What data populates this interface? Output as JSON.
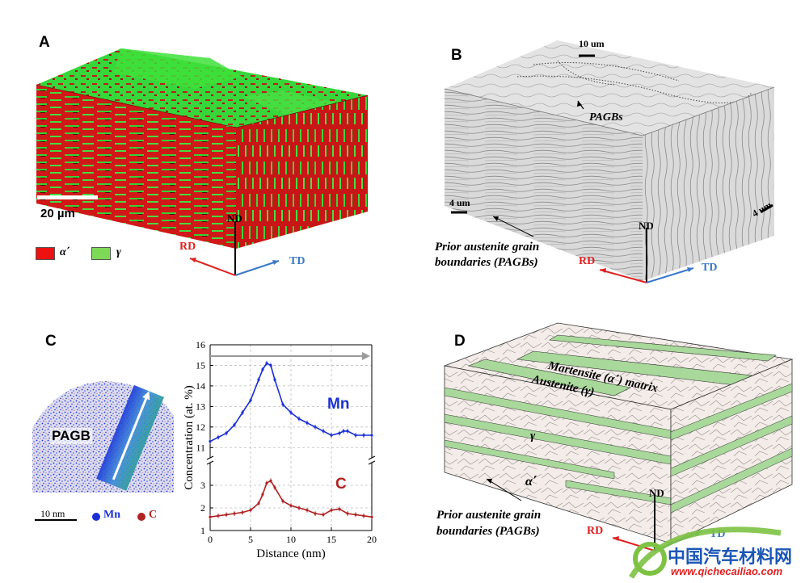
{
  "panels": {
    "a": {
      "letter": "A",
      "scale_bar": "20 µm",
      "legend": [
        {
          "label": "α΄",
          "color": "#ee1111"
        },
        {
          "label": "γ",
          "color": "#7ed957"
        }
      ],
      "axes": {
        "nd": "ND",
        "rd": "RD",
        "td": "TD"
      }
    },
    "b": {
      "letter": "B",
      "scale_top": "10 um",
      "scale_left": "4 um",
      "scale_right": "4 um",
      "pagb_tag": "PAGBs",
      "caption_line1": "Prior austenite grain",
      "caption_line2": "boundaries (PAGBs)",
      "axes": {
        "nd": "ND",
        "rd": "RD",
        "td": "TD"
      }
    },
    "c": {
      "letter": "C",
      "pagb_label": "PAGB",
      "scale_bar": "10 nm",
      "legend": [
        {
          "label": "Mn",
          "color": "#1a2fd6"
        },
        {
          "label": "C",
          "color": "#b22222"
        }
      ]
    },
    "d": {
      "letter": "D",
      "martensite_label": "Martensite (α΄) matrix",
      "austenite_label": "Austenite (γ)",
      "gamma_label": "γ",
      "alpha_label": "α΄",
      "caption_line1": "Prior austenite grain",
      "caption_line2": "boundaries (PAGBs)",
      "axes": {
        "nd": "ND",
        "rd": "RD",
        "td": "TD"
      }
    }
  },
  "watermark": {
    "cn": "中国汽车材料网",
    "url": "www.qichecailiao.com"
  },
  "chart_data": {
    "type": "line",
    "xlabel": "Distance (nm)",
    "ylabel": "Concentration (at. %)",
    "xlim": [
      0,
      20
    ],
    "x_ticks": [
      "0",
      "5",
      "10",
      "15",
      "20"
    ],
    "upper_ylim": [
      10.5,
      16
    ],
    "upper_ticks": [
      "11",
      "12",
      "13",
      "14",
      "15",
      "16"
    ],
    "lower_ylim": [
      1,
      4
    ],
    "lower_ticks": [
      "1",
      "2",
      "3"
    ],
    "series": [
      {
        "name": "Mn",
        "color": "#1a2fd6",
        "x": [
          0,
          1,
          2,
          3,
          4,
          5,
          6,
          6.5,
          7,
          7.5,
          8,
          9,
          10,
          11,
          12,
          13,
          14,
          15,
          16,
          16.5,
          17,
          18,
          19,
          20
        ],
        "y": [
          11.3,
          11.5,
          11.7,
          12.1,
          12.7,
          13.3,
          14.3,
          14.8,
          15.1,
          15.0,
          14.3,
          13.1,
          12.7,
          12.4,
          12.2,
          12.0,
          11.8,
          11.6,
          11.7,
          11.8,
          11.8,
          11.6,
          11.6,
          11.6
        ]
      },
      {
        "name": "C",
        "color": "#b22222",
        "x": [
          0,
          1,
          2,
          3,
          4,
          5,
          6,
          6.5,
          7,
          7.5,
          8,
          9,
          10,
          11,
          12,
          13,
          14,
          15,
          16,
          17,
          18,
          19,
          20
        ],
        "y": [
          1.6,
          1.65,
          1.7,
          1.75,
          1.8,
          1.9,
          2.2,
          2.6,
          3.1,
          3.2,
          2.9,
          2.3,
          2.1,
          2.0,
          1.9,
          1.75,
          1.7,
          1.9,
          1.95,
          1.75,
          1.7,
          1.65,
          1.6
        ]
      }
    ]
  }
}
